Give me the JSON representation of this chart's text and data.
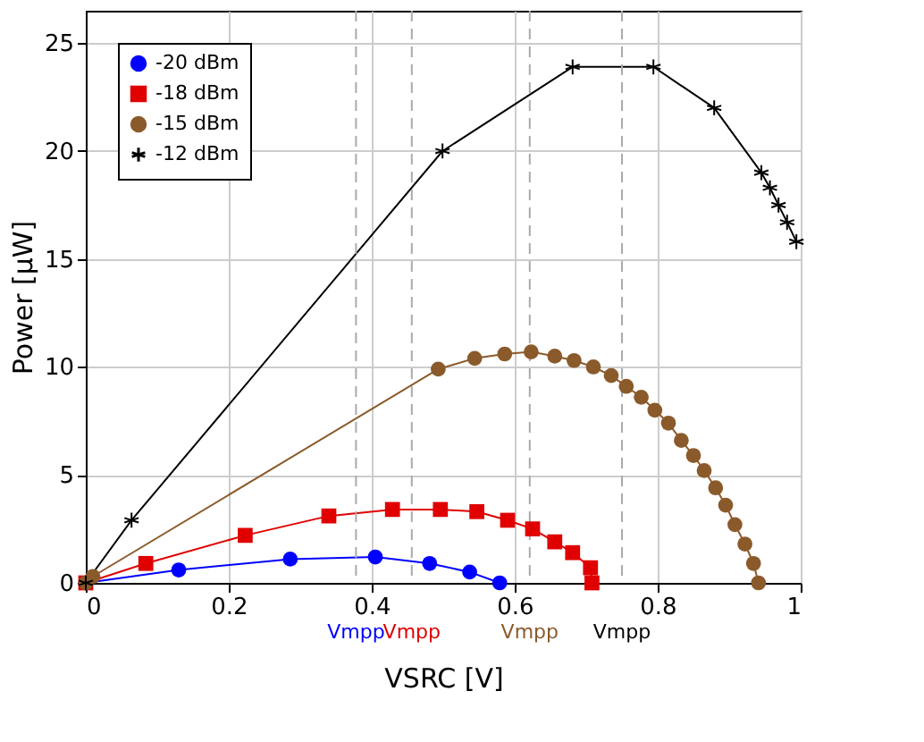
{
  "chart_data": {
    "type": "line",
    "xlabel": "VSRC [V]",
    "ylabel": "Power [µW]",
    "xlim": [
      0,
      1
    ],
    "xticks": [
      0,
      0.2,
      0.4,
      0.6,
      0.8,
      1
    ],
    "ylim": [
      0,
      26.5
    ],
    "yticks": [
      0,
      5,
      10,
      15,
      20,
      25
    ],
    "grid": true,
    "legend": "top left",
    "series": [
      {
        "name": "-20 dBm",
        "color": "#0000ff",
        "marker": "circle",
        "x": [
          0,
          0.13,
          0.286,
          0.405,
          0.481,
          0.537,
          0.579
        ],
        "values": [
          0,
          0.6,
          1.1,
          1.2,
          0.9,
          0.5,
          0
        ]
      },
      {
        "name": "-18 dBm",
        "color": "#e00000",
        "marker": "square",
        "x": [
          0,
          0.084,
          0.223,
          0.34,
          0.429,
          0.496,
          0.547,
          0.59,
          0.625,
          0.656,
          0.681,
          0.706,
          0.708
        ],
        "values": [
          0,
          0.9,
          2.2,
          3.1,
          3.4,
          3.4,
          3.3,
          2.9,
          2.5,
          1.9,
          1.4,
          0.7,
          0
        ]
      },
      {
        "name": "-15 dBm",
        "color": "#8b5a2b",
        "marker": "circle",
        "x": [
          0,
          0.01,
          0.493,
          0.544,
          0.586,
          0.623,
          0.656,
          0.683,
          0.71,
          0.735,
          0.756,
          0.777,
          0.796,
          0.815,
          0.833,
          0.85,
          0.865,
          0.881,
          0.895,
          0.908,
          0.922,
          0.934,
          0.941
        ],
        "values": [
          0,
          0.3,
          9.9,
          10.4,
          10.6,
          10.7,
          10.5,
          10.3,
          10.0,
          9.6,
          9.1,
          8.6,
          8.0,
          7.4,
          6.6,
          5.9,
          5.2,
          4.4,
          3.6,
          2.7,
          1.8,
          0.9,
          0
        ]
      },
      {
        "name": "-12 dBm",
        "color": "#000000",
        "marker": "cross",
        "x": [
          0,
          0.064,
          0.499,
          0.681,
          0.794,
          0.879,
          0.945,
          0.957,
          0.969,
          0.981,
          0.994
        ],
        "values": [
          0,
          2.9,
          20.0,
          23.9,
          23.9,
          22.0,
          19.0,
          18.3,
          17.5,
          16.7,
          15.8
        ]
      }
    ],
    "ref_lines": [
      {
        "axis": "x",
        "value": 0.378,
        "label": "Vmpp",
        "color": "#aaaaaa",
        "line_style": "dashed"
      },
      {
        "axis": "x",
        "value": 0.456,
        "label": "Vmpp",
        "color": "#aaaaaa",
        "line_style": "dashed"
      },
      {
        "axis": "x",
        "value": 0.621,
        "label": "Vmpp",
        "color": "#aaaaaa",
        "line_style": "dashed"
      },
      {
        "axis": "x",
        "value": 0.75,
        "label": "Vmpp",
        "color": "#aaaaaa",
        "line_style": "dashed"
      }
    ]
  }
}
